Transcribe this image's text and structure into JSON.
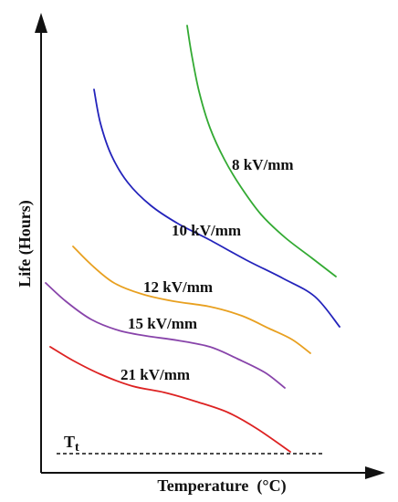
{
  "chart_data": {
    "type": "line",
    "xlabel": "Temperature  (°C)",
    "ylabel": "Life (Hours)",
    "threshold_label": {
      "main": "T",
      "sub": "t"
    },
    "axis_color": "#111111",
    "series": [
      {
        "name": "8 kV/mm",
        "color": "#33aa33",
        "points": [
          [
            205,
            28
          ],
          [
            210,
            60
          ],
          [
            218,
            100
          ],
          [
            230,
            140
          ],
          [
            246,
            175
          ],
          [
            264,
            205
          ],
          [
            286,
            235
          ],
          [
            312,
            260
          ],
          [
            342,
            283
          ],
          [
            368,
            303
          ]
        ]
      },
      {
        "name": "10 kV/mm",
        "color": "#2323bb",
        "points": [
          [
            103,
            98
          ],
          [
            110,
            135
          ],
          [
            122,
            170
          ],
          [
            140,
            200
          ],
          [
            165,
            225
          ],
          [
            195,
            245
          ],
          [
            230,
            263
          ],
          [
            270,
            285
          ],
          [
            310,
            305
          ],
          [
            345,
            325
          ],
          [
            372,
            358
          ]
        ]
      },
      {
        "name": "12 kV/mm",
        "color": "#e8a020",
        "points": [
          [
            80,
            270
          ],
          [
            100,
            290
          ],
          [
            125,
            310
          ],
          [
            155,
            322
          ],
          [
            190,
            330
          ],
          [
            230,
            336
          ],
          [
            265,
            346
          ],
          [
            295,
            360
          ],
          [
            320,
            372
          ],
          [
            340,
            387
          ]
        ]
      },
      {
        "name": "15 kV/mm",
        "color": "#8844aa",
        "points": [
          [
            50,
            310
          ],
          [
            72,
            330
          ],
          [
            100,
            350
          ],
          [
            130,
            362
          ],
          [
            160,
            368
          ],
          [
            195,
            373
          ],
          [
            230,
            380
          ],
          [
            260,
            393
          ],
          [
            290,
            408
          ],
          [
            312,
            425
          ]
        ]
      },
      {
        "name": "21 kV/mm",
        "color": "#dd2222",
        "points": [
          [
            55,
            380
          ],
          [
            80,
            395
          ],
          [
            110,
            410
          ],
          [
            145,
            423
          ],
          [
            180,
            430
          ],
          [
            215,
            440
          ],
          [
            250,
            452
          ],
          [
            282,
            470
          ],
          [
            318,
            495
          ]
        ]
      }
    ],
    "threshold": {
      "style": "dashed",
      "color": "#111111"
    }
  }
}
